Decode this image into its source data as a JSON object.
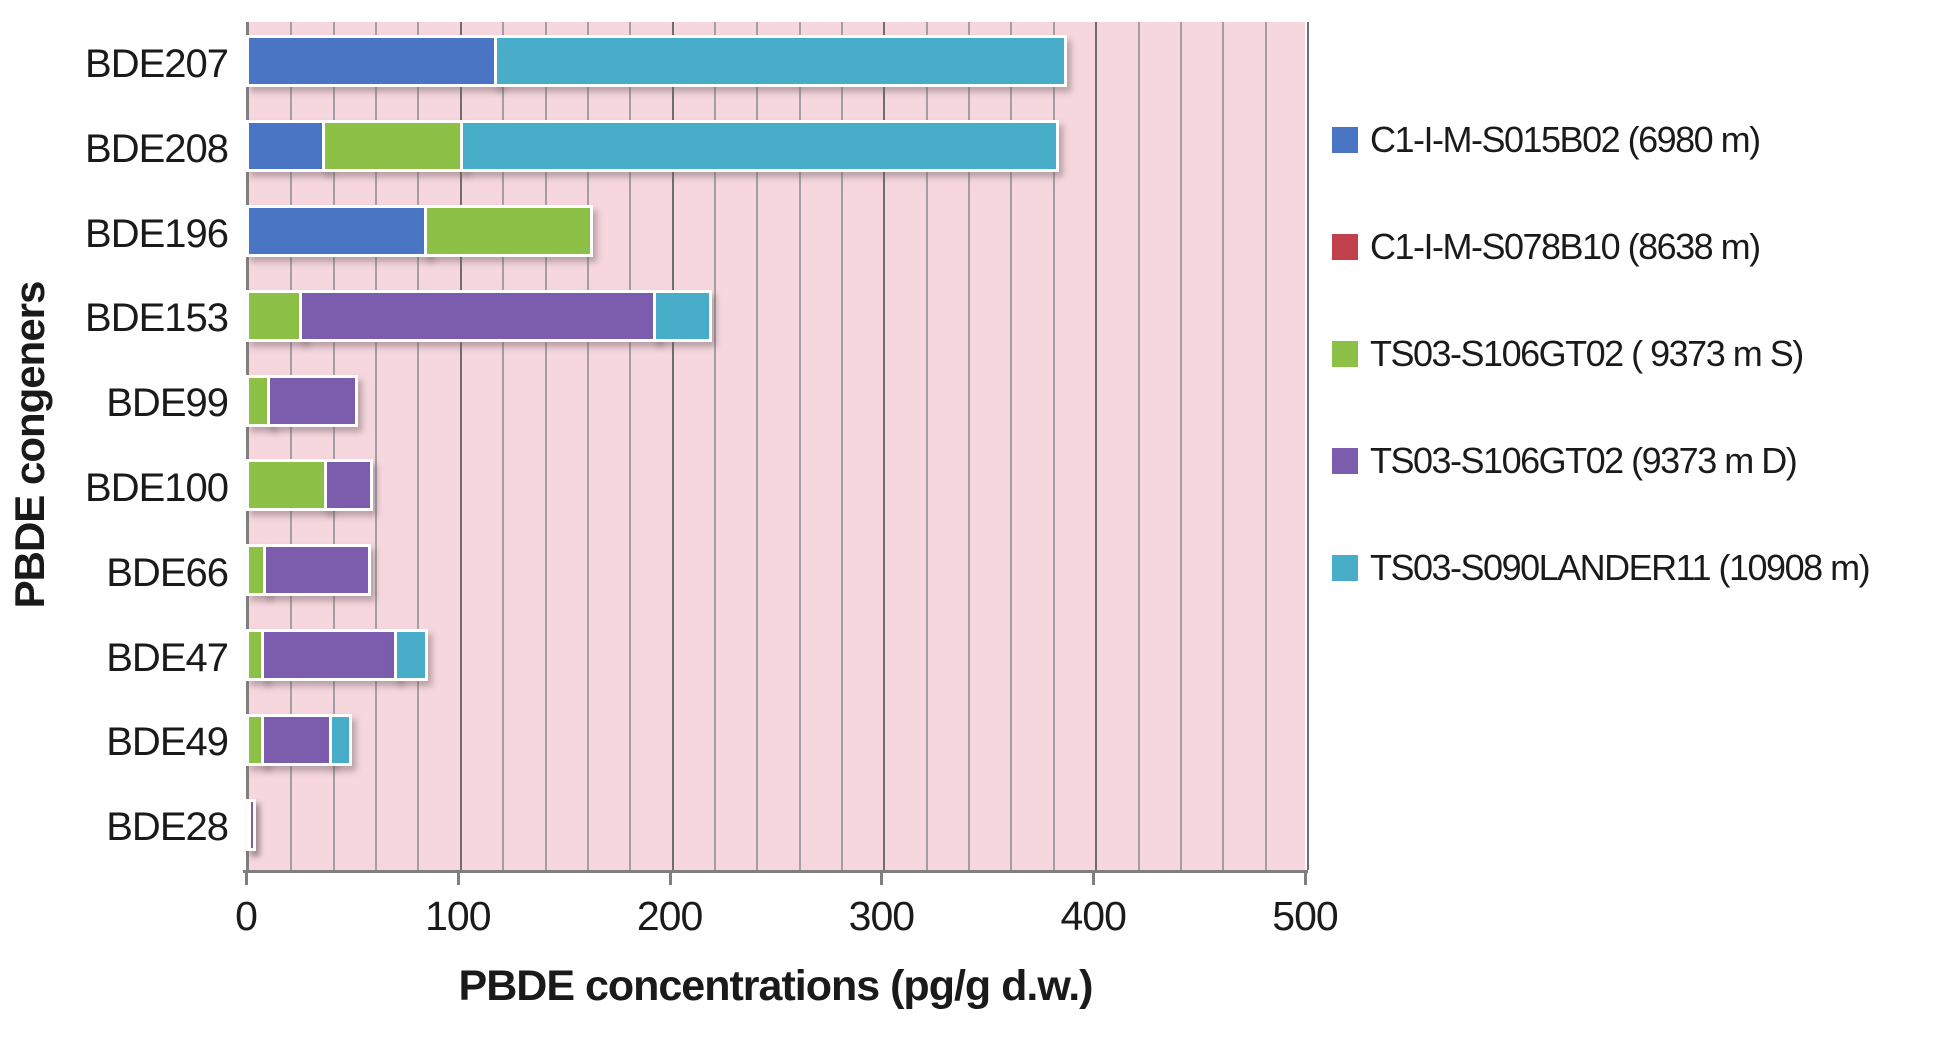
{
  "figure": {
    "background": "#ffffff",
    "plot_background": "#f6d7dd",
    "axis_color": "#7f7f7f",
    "gridline_minor_color": "#a39fa3",
    "gridline_major_color": "#6e6e6e"
  },
  "chart_data": {
    "type": "bar",
    "orientation": "horizontal",
    "stacked": true,
    "title": "",
    "xlabel": "PBDE concentrations (pg/g d.w.)",
    "ylabel": "PBDE congeners",
    "xlim": [
      0,
      500
    ],
    "xticks": [
      0,
      100,
      200,
      300,
      400,
      500
    ],
    "minor_grid_step": 20,
    "grid": true,
    "legend_position": "right",
    "categories": [
      "BDE207",
      "BDE208",
      "BDE196",
      "BDE153",
      "BDE99",
      "BDE100",
      "BDE66",
      "BDE47",
      "BDE49",
      "BDE28"
    ],
    "series": [
      {
        "name": "C1-I-M-S015B02 (6980 m)",
        "color": "#4a75c4",
        "values": [
          117,
          36,
          84,
          0,
          0,
          0,
          0,
          0,
          0,
          0
        ]
      },
      {
        "name": "C1-I-M-S078B10 (8638 m)",
        "color": "#c0404b",
        "values": [
          0,
          0,
          0,
          0,
          0,
          0,
          0,
          0,
          0,
          0
        ]
      },
      {
        "name": "TS03-S106GT02 ( 9373 m S)",
        "color": "#8cc046",
        "values": [
          0,
          65,
          77,
          25,
          10,
          37,
          8,
          7,
          7,
          1
        ]
      },
      {
        "name": "TS03-S106GT02 (9373 m D)",
        "color": "#7b5cad",
        "values": [
          0,
          0,
          0,
          167,
          40,
          20,
          48,
          63,
          32,
          1
        ]
      },
      {
        "name": "TS03-S090LANDER11 (10908 m)",
        "color": "#47adc9",
        "values": [
          268,
          280,
          0,
          25,
          0,
          0,
          0,
          13,
          8,
          0
        ]
      }
    ]
  }
}
